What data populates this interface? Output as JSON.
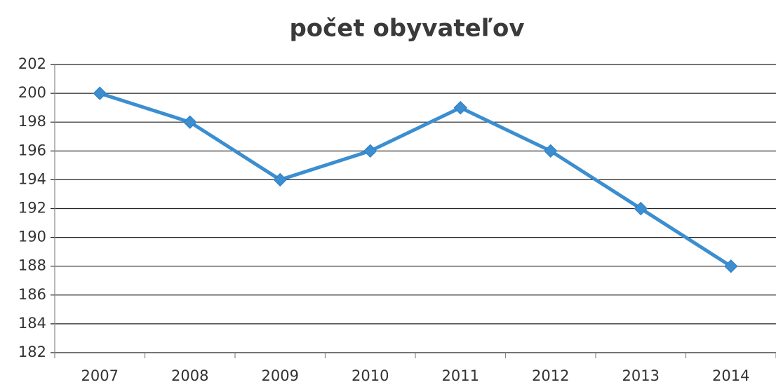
{
  "chart_data": {
    "type": "line",
    "title": "počet obyvateľov",
    "categories": [
      "2007",
      "2008",
      "2009",
      "2010",
      "2011",
      "2012",
      "2013",
      "2014"
    ],
    "values": [
      200,
      198,
      194,
      196,
      199,
      196,
      192,
      188
    ],
    "color": "#3b8ed0",
    "ylim": [
      182,
      202
    ],
    "yticks": [
      182,
      184,
      186,
      188,
      190,
      192,
      194,
      196,
      198,
      200,
      202
    ],
    "grid": true
  }
}
